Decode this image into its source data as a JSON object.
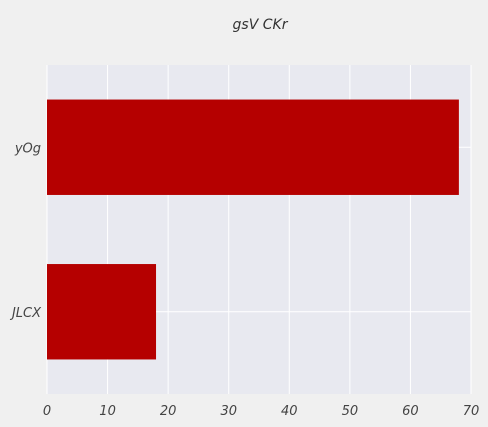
{
  "chart_data": {
    "type": "bar",
    "orientation": "horizontal",
    "title": "gsV CKr",
    "xlabel": "",
    "ylabel": "",
    "categories": [
      "yOg",
      "JLCX"
    ],
    "values": [
      68,
      18
    ],
    "xlim": [
      0,
      70
    ],
    "xticks": [
      0,
      10,
      20,
      30,
      40,
      50,
      60,
      70
    ],
    "grid": true,
    "legend": "none",
    "colors": {
      "bar": "#b50000",
      "plot_background": "#e8e9f0",
      "figure_background": "#f0f0f0",
      "grid": "#ffffff"
    }
  }
}
